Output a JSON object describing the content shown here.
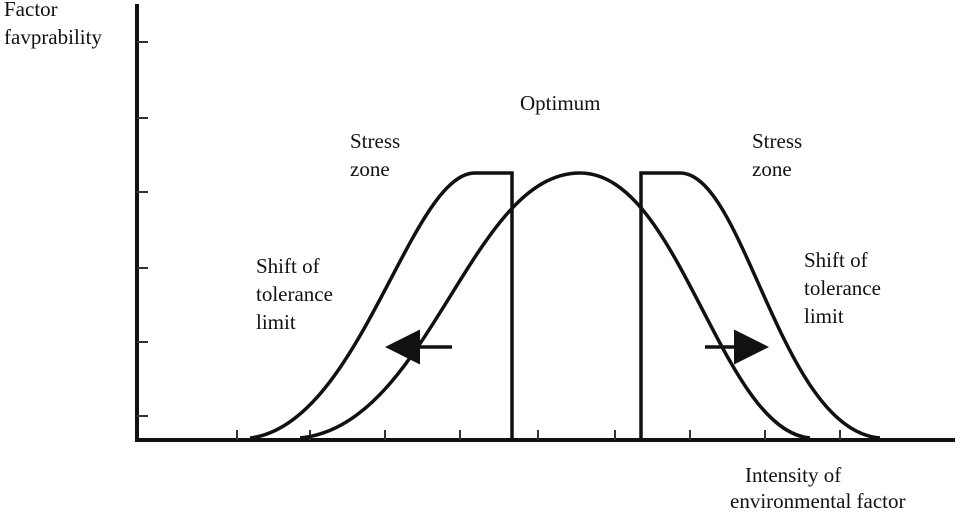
{
  "y_axis_label": [
    "Factor",
    "favprability"
  ],
  "x_axis_label": [
    "Intensity of",
    "environmental factor"
  ],
  "optimum_label": "Optimum",
  "left_stress_label": [
    "Stress",
    "zone"
  ],
  "right_stress_label": [
    "Stress",
    "zone"
  ],
  "left_shift_label": [
    "Shift of",
    "tolerance",
    "limit"
  ],
  "right_shift_label": [
    "Shift of",
    "tolerance",
    "limit"
  ]
}
